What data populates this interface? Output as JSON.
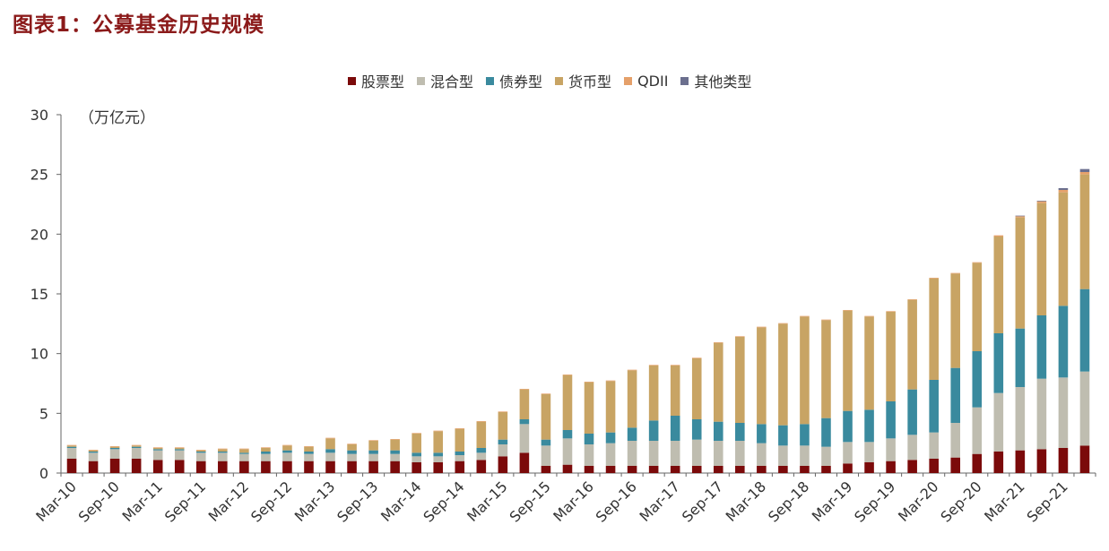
{
  "title": "图表1：公募基金历史规模",
  "chart_data": {
    "type": "bar",
    "stacked": true,
    "title": "图表1：公募基金历史规模",
    "ylabel": "（万亿元）",
    "xlabel": "",
    "ylim": [
      0,
      30
    ],
    "yticks": [
      0,
      5,
      10,
      15,
      20,
      25,
      30
    ],
    "x_tick_labels": [
      "Mar-10",
      "Sep-10",
      "Mar-11",
      "Sep-11",
      "Mar-12",
      "Sep-12",
      "Mar-13",
      "Sep-13",
      "Mar-14",
      "Sep-14",
      "Mar-15",
      "Sep-15",
      "Mar-16",
      "Sep-16",
      "Mar-17",
      "Sep-17",
      "Mar-18",
      "Sep-18",
      "Mar-19",
      "Sep-19",
      "Mar-20",
      "Sep-20",
      "Mar-21",
      "Sep-21"
    ],
    "categories": [
      "Mar-10",
      "Jun-10",
      "Sep-10",
      "Dec-10",
      "Mar-11",
      "Jun-11",
      "Sep-11",
      "Dec-11",
      "Mar-12",
      "Jun-12",
      "Sep-12",
      "Dec-12",
      "Mar-13",
      "Jun-13",
      "Sep-13",
      "Dec-13",
      "Mar-14",
      "Jun-14",
      "Sep-14",
      "Dec-14",
      "Mar-15",
      "Jun-15",
      "Sep-15",
      "Dec-15",
      "Mar-16",
      "Jun-16",
      "Sep-16",
      "Dec-16",
      "Mar-17",
      "Jun-17",
      "Sep-17",
      "Dec-17",
      "Mar-18",
      "Jun-18",
      "Sep-18",
      "Dec-18",
      "Mar-19",
      "Jun-19",
      "Sep-19",
      "Dec-19",
      "Mar-20",
      "Jun-20",
      "Sep-20",
      "Dec-20",
      "Mar-21",
      "Jun-21",
      "Sep-21",
      "Dec-21"
    ],
    "colors": {
      "stock": "#7B0A0A",
      "mixed": "#BFBDB0",
      "bond": "#3A8A9E",
      "money": "#C8A464",
      "qdii": "#E5A06A",
      "other": "#6B6F8E"
    },
    "legend_position": "top-center",
    "series": [
      {
        "name": "股票型",
        "key": "stock",
        "values": [
          1.2,
          1.0,
          1.2,
          1.2,
          1.1,
          1.1,
          1.0,
          1.0,
          1.0,
          1.0,
          1.0,
          1.0,
          1.0,
          1.0,
          1.0,
          1.0,
          0.9,
          0.9,
          1.0,
          1.1,
          1.4,
          1.7,
          0.6,
          0.7,
          0.6,
          0.6,
          0.6,
          0.6,
          0.6,
          0.6,
          0.6,
          0.6,
          0.6,
          0.6,
          0.6,
          0.6,
          0.8,
          0.9,
          1.0,
          1.1,
          1.2,
          1.3,
          1.6,
          1.8,
          1.9,
          2.0,
          2.1,
          2.3
        ]
      },
      {
        "name": "混合型",
        "key": "mixed",
        "values": [
          0.9,
          0.7,
          0.8,
          0.9,
          0.8,
          0.8,
          0.7,
          0.7,
          0.6,
          0.6,
          0.7,
          0.6,
          0.7,
          0.6,
          0.6,
          0.6,
          0.5,
          0.5,
          0.5,
          0.6,
          1.0,
          2.4,
          1.7,
          2.2,
          1.8,
          1.9,
          2.1,
          2.1,
          2.1,
          2.2,
          2.1,
          2.1,
          1.9,
          1.7,
          1.7,
          1.6,
          1.8,
          1.7,
          1.9,
          2.1,
          2.2,
          2.9,
          3.9,
          4.9,
          5.3,
          5.9,
          5.9,
          6.2
        ]
      },
      {
        "name": "债券型",
        "key": "bond",
        "values": [
          0.1,
          0.1,
          0.1,
          0.1,
          0.1,
          0.1,
          0.1,
          0.1,
          0.1,
          0.2,
          0.2,
          0.2,
          0.3,
          0.3,
          0.3,
          0.3,
          0.3,
          0.3,
          0.3,
          0.4,
          0.4,
          0.4,
          0.5,
          0.7,
          0.9,
          0.9,
          1.1,
          1.7,
          2.1,
          1.7,
          1.6,
          1.5,
          1.6,
          1.7,
          1.8,
          2.4,
          2.6,
          2.7,
          3.1,
          3.8,
          4.4,
          4.6,
          4.7,
          5.0,
          4.9,
          5.3,
          6.0,
          6.9
        ]
      },
      {
        "name": "货币型",
        "key": "money",
        "values": [
          0.1,
          0.1,
          0.1,
          0.1,
          0.1,
          0.1,
          0.1,
          0.2,
          0.3,
          0.3,
          0.4,
          0.4,
          0.9,
          0.5,
          0.8,
          0.9,
          1.6,
          1.8,
          1.9,
          2.2,
          2.3,
          2.5,
          3.8,
          4.6,
          4.3,
          4.3,
          4.8,
          4.6,
          4.2,
          5.1,
          6.6,
          7.2,
          8.1,
          8.5,
          9.0,
          8.2,
          8.4,
          7.8,
          7.5,
          7.5,
          8.5,
          7.9,
          7.4,
          8.1,
          9.3,
          9.4,
          9.5,
          9.6
        ]
      },
      {
        "name": "QDII",
        "key": "qdii",
        "values": [
          0.05,
          0.05,
          0.05,
          0.05,
          0.05,
          0.05,
          0.05,
          0.05,
          0.05,
          0.05,
          0.05,
          0.05,
          0.05,
          0.05,
          0.05,
          0.05,
          0.05,
          0.05,
          0.05,
          0.05,
          0.05,
          0.05,
          0.05,
          0.05,
          0.05,
          0.05,
          0.05,
          0.05,
          0.05,
          0.05,
          0.05,
          0.05,
          0.05,
          0.05,
          0.05,
          0.05,
          0.05,
          0.05,
          0.05,
          0.05,
          0.05,
          0.05,
          0.05,
          0.1,
          0.1,
          0.15,
          0.2,
          0.2
        ]
      },
      {
        "name": "其他类型",
        "key": "other",
        "values": [
          0,
          0,
          0,
          0,
          0,
          0,
          0,
          0,
          0,
          0,
          0,
          0,
          0,
          0,
          0,
          0,
          0,
          0,
          0,
          0,
          0,
          0,
          0,
          0,
          0,
          0,
          0,
          0,
          0,
          0,
          0,
          0,
          0,
          0,
          0,
          0,
          0,
          0,
          0,
          0,
          0,
          0,
          0,
          0,
          0.05,
          0.05,
          0.15,
          0.25
        ]
      }
    ]
  }
}
